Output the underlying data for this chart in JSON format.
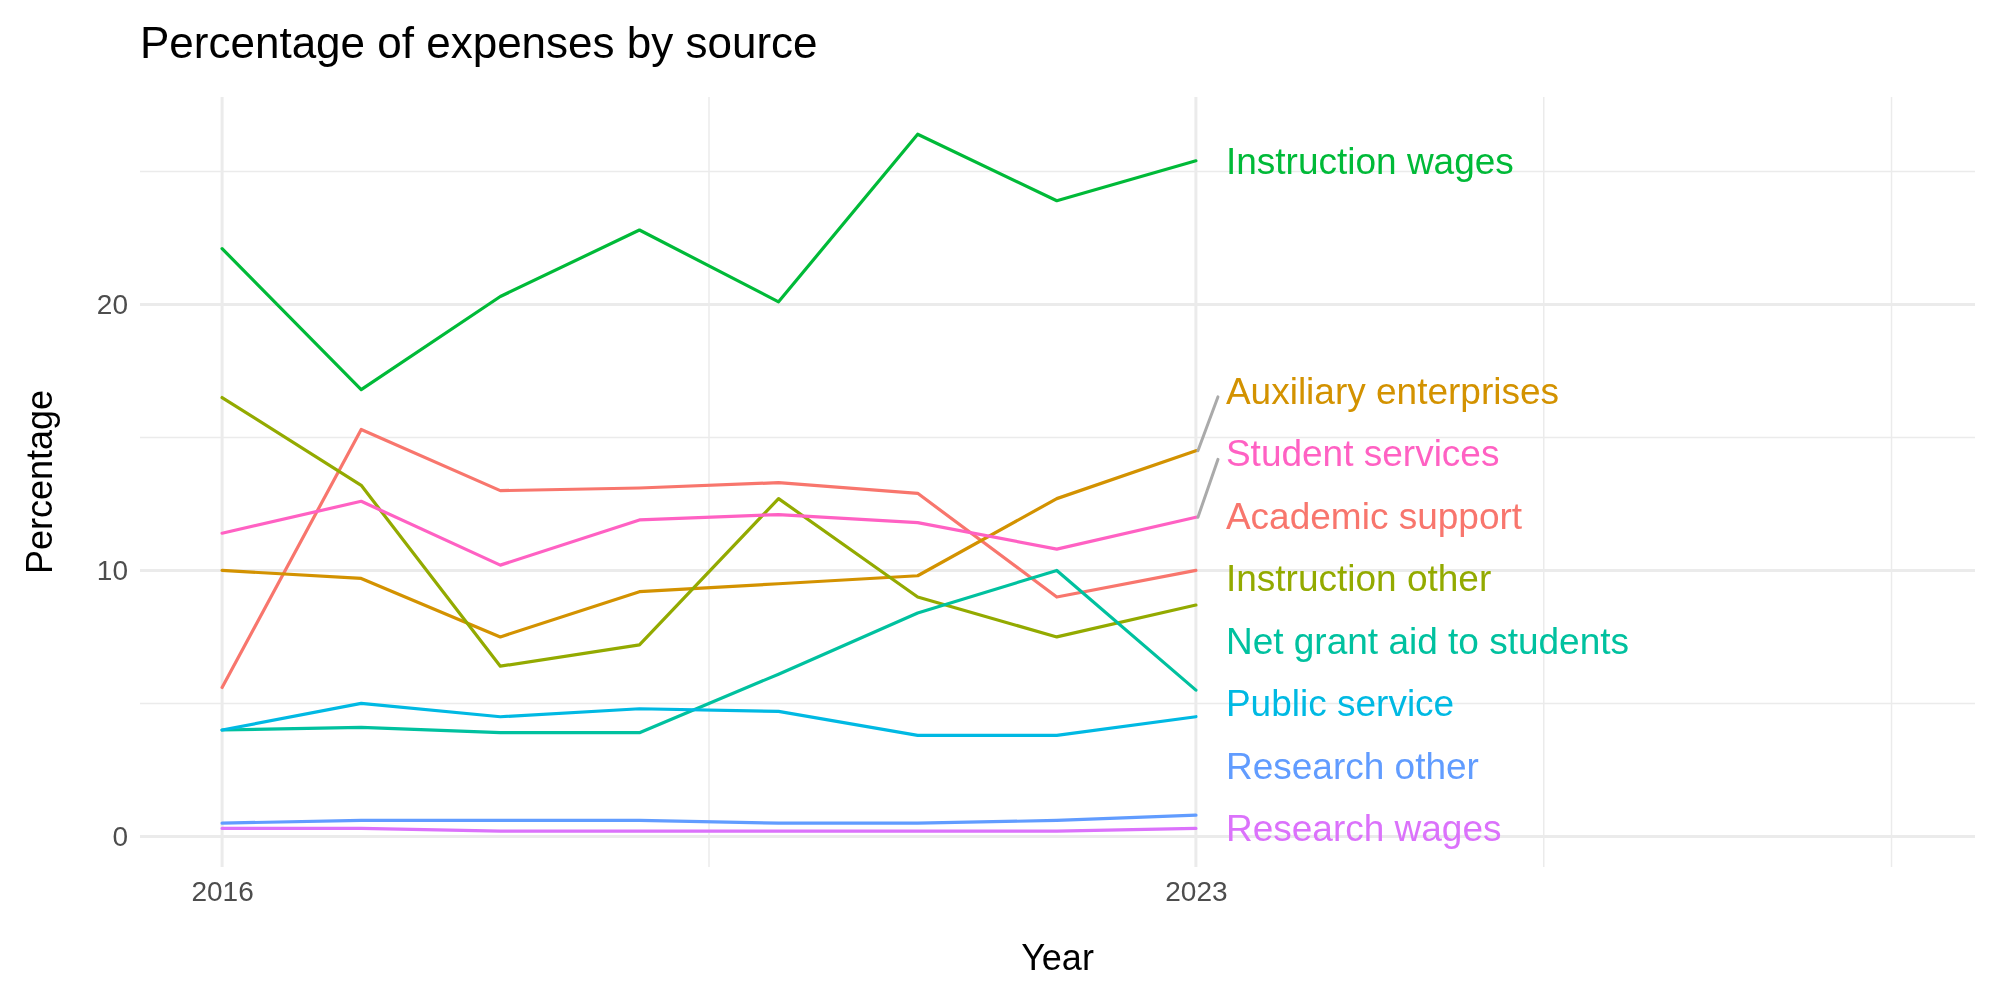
{
  "chart_data": {
    "type": "line",
    "title": "Percentage of expenses by source",
    "xlabel": "Year",
    "ylabel": "Percentage",
    "x": [
      2016,
      2017,
      2018,
      2019,
      2020,
      2021,
      2022,
      2023
    ],
    "xlim": [
      2015.41,
      2028.6
    ],
    "xticks": [
      2016,
      {
        "value": 2019.5,
        "label": null
      },
      2023,
      {
        "value": 2025.5,
        "label": null
      },
      {
        "value": 2028,
        "label": null
      }
    ],
    "ylim": [
      -1.15,
      27.8
    ],
    "yticks": [
      0,
      {
        "value": 5,
        "label": null
      },
      10,
      {
        "value": 15,
        "label": null
      },
      20,
      {
        "value": 25,
        "label": null
      }
    ],
    "grid": true,
    "legend": false,
    "line_style": "solid",
    "marker": "none",
    "series": [
      {
        "name": "Academic support",
        "color": "#f8766d",
        "values": [
          5.6,
          15.3,
          13.0,
          13.1,
          13.3,
          12.9,
          9.0,
          10.0
        ]
      },
      {
        "name": "Auxiliary enterprises",
        "color": "#d39200",
        "values": [
          10.0,
          9.7,
          7.5,
          9.2,
          9.5,
          9.8,
          12.7,
          14.5
        ]
      },
      {
        "name": "Instruction other",
        "color": "#93aa00",
        "values": [
          16.5,
          13.2,
          6.4,
          7.2,
          12.7,
          9.0,
          7.5,
          8.7
        ]
      },
      {
        "name": "Instruction wages",
        "color": "#00ba38",
        "values": [
          22.1,
          16.8,
          20.3,
          22.8,
          20.1,
          26.4,
          23.9,
          25.4
        ]
      },
      {
        "name": "Net grant aid to students",
        "color": "#00c19f",
        "values": [
          4.0,
          4.1,
          3.9,
          3.9,
          6.1,
          8.4,
          10.0,
          5.5
        ]
      },
      {
        "name": "Public service",
        "color": "#00b9e3",
        "values": [
          4.0,
          5.0,
          4.5,
          4.8,
          4.7,
          3.8,
          3.8,
          4.5
        ]
      },
      {
        "name": "Research other",
        "color": "#619cff",
        "values": [
          0.5,
          0.6,
          0.6,
          0.6,
          0.5,
          0.5,
          0.6,
          0.8
        ]
      },
      {
        "name": "Research wages",
        "color": "#db72fb",
        "values": [
          0.3,
          0.3,
          0.2,
          0.2,
          0.2,
          0.2,
          0.2,
          0.3
        ]
      },
      {
        "name": "Student services",
        "color": "#ff61c3",
        "values": [
          11.4,
          12.6,
          10.2,
          11.9,
          12.1,
          11.8,
          10.8,
          12.0
        ]
      }
    ]
  }
}
